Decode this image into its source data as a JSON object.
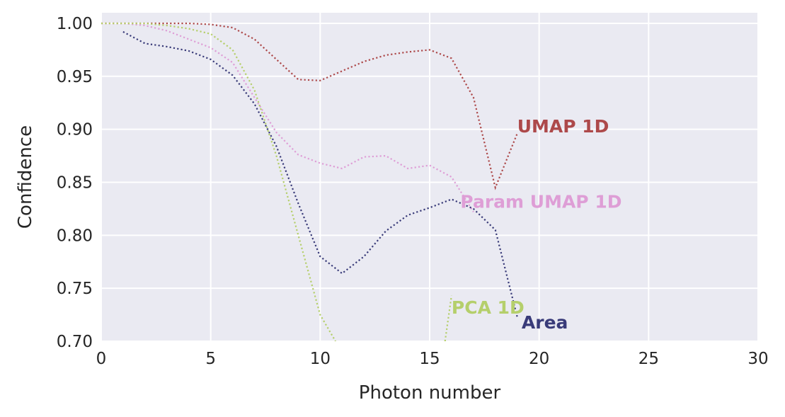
{
  "chart_data": {
    "type": "line",
    "title": "",
    "xlabel": "Photon number",
    "ylabel": "Confidence",
    "xlim": [
      0,
      30
    ],
    "ylim": [
      0.7,
      1.01
    ],
    "xticks": [
      "0",
      "5",
      "10",
      "15",
      "20",
      "25",
      "30"
    ],
    "yticks": [
      "0.70",
      "0.75",
      "0.80",
      "0.85",
      "0.90",
      "0.95",
      "1.00"
    ],
    "grid": true,
    "line_style": "dotted",
    "legend": "inline labels at line ends",
    "series": [
      {
        "name": "UMAP 1D",
        "color": "#ad494a",
        "x": [
          0,
          1,
          2,
          3,
          4,
          5,
          6,
          7,
          8,
          9,
          10,
          11,
          12,
          13,
          14,
          15,
          16,
          17,
          18,
          19
        ],
        "y": [
          1.0,
          1.0,
          1.0,
          1.0,
          1.0,
          0.999,
          0.996,
          0.985,
          0.966,
          0.947,
          0.946,
          0.955,
          0.964,
          0.97,
          0.973,
          0.975,
          0.967,
          0.93,
          0.845,
          0.896
        ],
        "label_pos": [
          19.0,
          0.903
        ]
      },
      {
        "name": "Param UMAP 1D",
        "color": "#de9ed6",
        "x": [
          0,
          1,
          2,
          3,
          4,
          5,
          6,
          7,
          8,
          9,
          10,
          11,
          12,
          13,
          14,
          15,
          16,
          17
        ],
        "y": [
          1.0,
          1.0,
          0.998,
          0.993,
          0.985,
          0.977,
          0.963,
          0.93,
          0.897,
          0.876,
          0.868,
          0.863,
          0.874,
          0.875,
          0.863,
          0.866,
          0.855,
          0.822
        ],
        "label_pos": [
          16.4,
          0.832
        ]
      },
      {
        "name": "PCA 1D",
        "color": "#b5cf6b",
        "x": [
          0,
          1,
          2,
          3,
          4,
          5,
          6,
          7,
          8,
          9,
          10,
          10.7,
          null,
          15.7,
          16
        ],
        "y": [
          1.0,
          1.0,
          1.0,
          0.998,
          0.995,
          0.99,
          0.975,
          0.937,
          0.875,
          0.8,
          0.725,
          0.7,
          null,
          0.7,
          0.743
        ],
        "label_pos": [
          16.0,
          0.732
        ]
      },
      {
        "name": "Area",
        "color": "#393b79",
        "x": [
          1,
          2,
          3,
          4,
          5,
          6,
          7,
          8,
          9,
          10,
          11,
          12,
          13,
          14,
          15,
          16,
          17,
          18,
          19
        ],
        "y": [
          0.992,
          0.981,
          0.978,
          0.974,
          0.966,
          0.951,
          0.924,
          0.884,
          0.83,
          0.78,
          0.764,
          0.78,
          0.804,
          0.819,
          0.826,
          0.834,
          0.825,
          0.805,
          0.723
        ],
        "label_pos": [
          19.2,
          0.718
        ]
      }
    ]
  }
}
